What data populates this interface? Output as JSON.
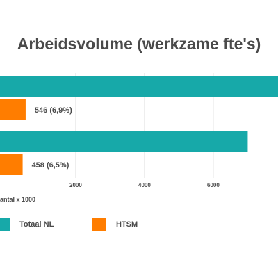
{
  "chart_data": {
    "type": "bar",
    "orientation": "horizontal",
    "title": "Arbeidsvolume (werkzame fte's)",
    "xlabel": "antal x 1000",
    "xlim": [
      -200,
      7880
    ],
    "xticks": [
      2000,
      4000,
      6000
    ],
    "grid": true,
    "legend_position": "bottom",
    "categories": [
      "",
      ""
    ],
    "series": [
      {
        "name": "Totaal NL",
        "color": "#17a9a9",
        "values": [
          7900,
          7000
        ],
        "labels": [
          "",
          ""
        ]
      },
      {
        "name": "HTSM",
        "color": "#ff7d00",
        "values": [
          546,
          458
        ],
        "labels": [
          "546 (6,9%)",
          "458 (6,5%)"
        ]
      }
    ]
  }
}
